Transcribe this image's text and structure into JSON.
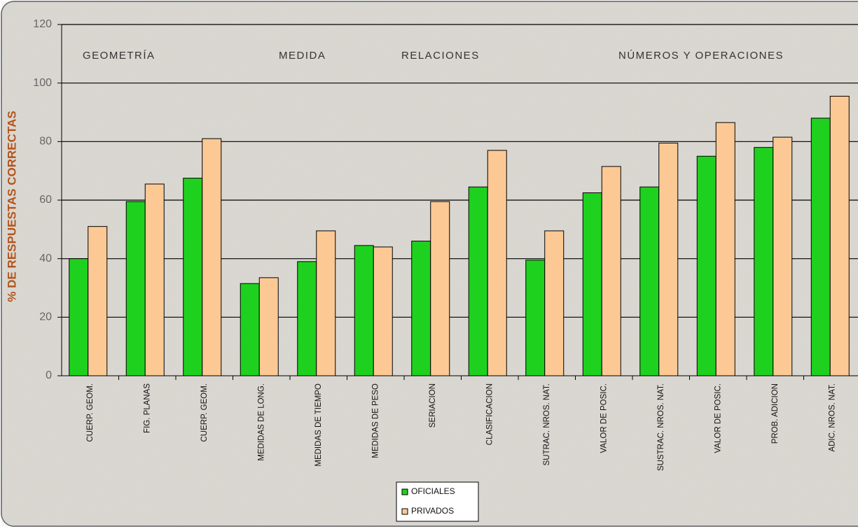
{
  "chart_data": {
    "type": "bar",
    "y_label": "% DE RESPUESTAS CORRECTAS",
    "annotations": [
      "GEOMETRÍA",
      "MEDIDA",
      "RELACIONES",
      "NÚMEROS Y OPERACIONES"
    ],
    "categories": [
      "CUERP. GEOM.",
      "FIG. PLANAS",
      "CUERP. GEOM.",
      "MEDIDAS DE LONG.",
      "MEDIDAS DE TIEMPO",
      "MEDIDAS DE PESO",
      "SERIACION",
      "CLASIFICACION",
      "SUTRAC. NROS. NAT.",
      "VALOR DE POSIC.",
      "SUSTRAC. NROS. NAT.",
      "VALOR DE POSIC.",
      "PROB. ADICION",
      "ADIC. NROS. NAT."
    ],
    "series": [
      {
        "name": "OFICIALES",
        "color": "#1fd11f",
        "values": [
          40,
          59.5,
          67.5,
          31.5,
          39,
          44.5,
          46,
          64.5,
          39.5,
          62.5,
          64.5,
          75,
          78,
          88
        ]
      },
      {
        "name": "PRIVADOS",
        "color": "#fcc995",
        "values": [
          51,
          65.5,
          81,
          33.5,
          49.5,
          44,
          59.5,
          77,
          49.5,
          71.5,
          79.5,
          86.5,
          81.5,
          95.5
        ]
      }
    ],
    "ylim": [
      0,
      120
    ],
    "yticks": [
      0,
      20,
      40,
      60,
      80,
      100,
      120
    ],
    "grid": true,
    "legend": "bottom"
  }
}
